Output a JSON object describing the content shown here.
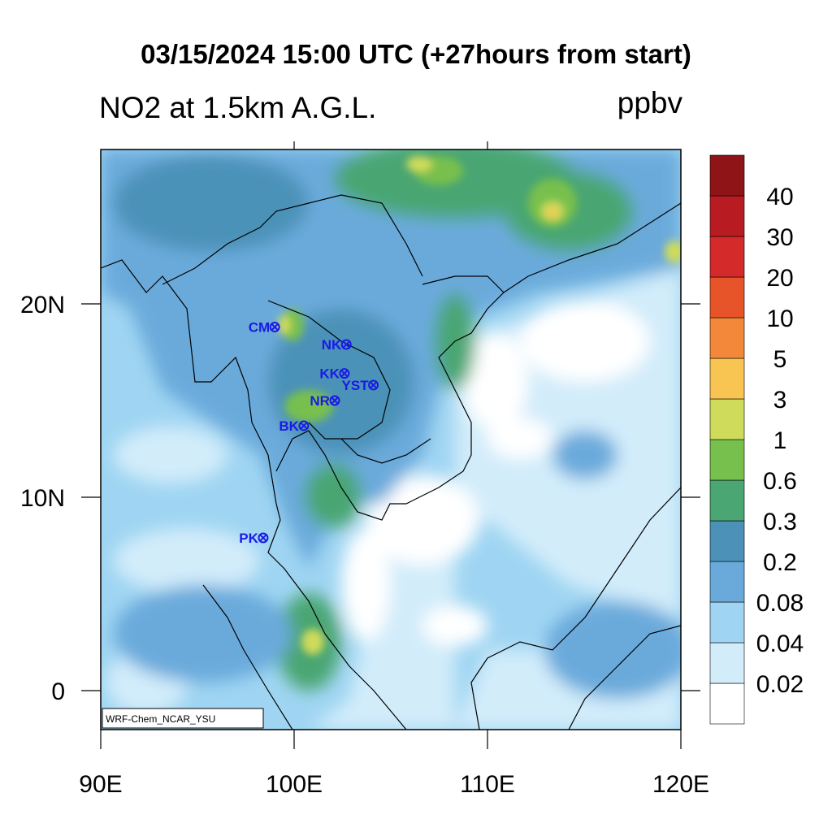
{
  "header": {
    "title": "03/15/2024 15:00 UTC (+27hours from start)",
    "subtitle": "NO2 at 1.5km A.G.L.",
    "units": "ppbv"
  },
  "map": {
    "lon_labels": [
      "90E",
      "100E",
      "110E",
      "120E"
    ],
    "lat_labels": [
      "20N",
      "10N",
      "0"
    ],
    "credit": "WRF-Chem_NCAR_YSU",
    "stations": [
      {
        "code": "CM",
        "lon": 99.0,
        "lat": 18.8
      },
      {
        "code": "NK",
        "lon": 102.7,
        "lat": 17.9
      },
      {
        "code": "KK",
        "lon": 102.6,
        "lat": 16.4
      },
      {
        "code": "YST",
        "lon": 104.1,
        "lat": 15.8
      },
      {
        "code": "NR",
        "lon": 102.1,
        "lat": 15.0
      },
      {
        "code": "BK",
        "lon": 100.5,
        "lat": 13.7
      },
      {
        "code": "PK",
        "lon": 98.4,
        "lat": 7.9
      }
    ]
  },
  "colorbar": {
    "levels": [
      "0.02",
      "0.04",
      "0.08",
      "0.2",
      "0.3",
      "0.6",
      "1",
      "3",
      "5",
      "10",
      "20",
      "30",
      "40"
    ],
    "colors": [
      "#ffffff",
      "#d2ecfa",
      "#9fd5f2",
      "#6aaadb",
      "#4c92b8",
      "#4aa672",
      "#78c04e",
      "#cfdb5a",
      "#f8c452",
      "#f3883a",
      "#e8542a",
      "#d42a2a",
      "#b81c22",
      "#8e1418"
    ]
  }
}
